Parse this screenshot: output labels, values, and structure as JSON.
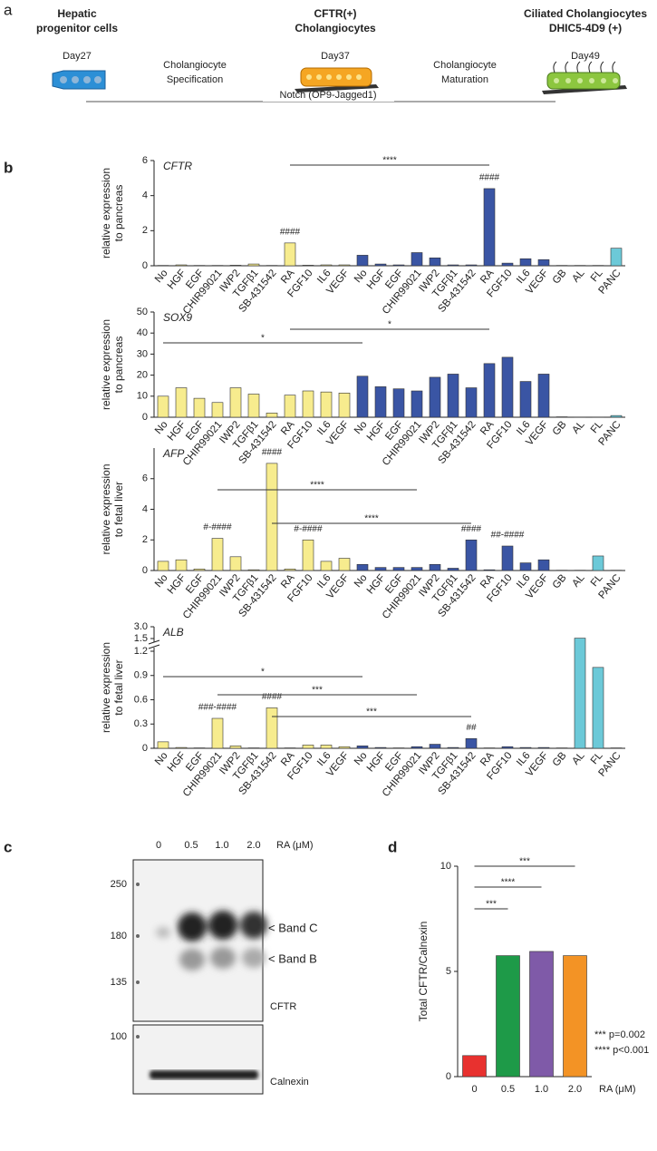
{
  "panel_labels": [
    "a",
    "b",
    "c",
    "d"
  ],
  "panel_a": {
    "stages": [
      {
        "title": [
          "Hepatic",
          "progenitor cells"
        ],
        "day": "Day27"
      },
      {
        "title": [
          "CFTR(+)",
          "Cholangiocytes"
        ],
        "day": "Day37"
      },
      {
        "title": [
          "Ciliated Cholangiocytes",
          "DHIC5-4D9 (+)"
        ],
        "day": "Day49"
      }
    ],
    "steps": [
      [
        "Cholangiocyte",
        "Specification"
      ],
      [
        "Cholangiocyte",
        "Maturation"
      ]
    ],
    "notch": "Notch (OP9-Jagged1)"
  },
  "panel_c": {
    "lanes": [
      "0",
      "0.5",
      "1.0",
      "2.0"
    ],
    "lane_unit": "RA (μM)",
    "markers": [
      "250",
      "180",
      "135",
      "100"
    ],
    "bands": [
      "< Band C",
      "< Band B"
    ],
    "blots": [
      "CFTR",
      "Calnexin"
    ]
  },
  "chart_data": [
    {
      "type": "bar",
      "title": "CFTR",
      "ylabel": [
        "relative expression",
        "to pancreas"
      ],
      "categories": [
        "No",
        "HGF",
        "EGF",
        "CHIR99021",
        "IWP2",
        "TGFβ1",
        "SB-431542",
        "RA",
        "FGF10",
        "IL6",
        "VEGF",
        "No",
        "HGF",
        "EGF",
        "CHIR99021",
        "IWP2",
        "TGFβ1",
        "SB-431542",
        "RA",
        "FGF10",
        "IL6",
        "VEGF",
        "GB",
        "AL",
        "FL",
        "PANC"
      ],
      "values": [
        0.02,
        0.05,
        0.02,
        0.02,
        0.03,
        0.1,
        0.02,
        1.3,
        0.03,
        0.05,
        0.05,
        0.6,
        0.1,
        0.05,
        0.75,
        0.45,
        0.05,
        0.05,
        4.4,
        0.15,
        0.4,
        0.35,
        0.02,
        0.02,
        0.02,
        1.0
      ],
      "colors": [
        "#f7ec8e",
        "#f7ec8e",
        "#f7ec8e",
        "#f7ec8e",
        "#f7ec8e",
        "#f7ec8e",
        "#f7ec8e",
        "#f7ec8e",
        "#f7ec8e",
        "#f7ec8e",
        "#f7ec8e",
        "#3a55a4",
        "#3a55a4",
        "#3a55a4",
        "#3a55a4",
        "#3a55a4",
        "#3a55a4",
        "#3a55a4",
        "#3a55a4",
        "#3a55a4",
        "#3a55a4",
        "#3a55a4",
        "#6cc9d8",
        "#6cc9d8",
        "#6cc9d8",
        "#6cc9d8"
      ],
      "ylim": [
        0,
        6
      ],
      "yticks": [
        0,
        2,
        4,
        6
      ],
      "annotations": [
        "****",
        "####",
        "####"
      ]
    },
    {
      "type": "bar",
      "title": "SOX9",
      "ylabel": [
        "relative expression",
        "to pancreas"
      ],
      "categories": [
        "No",
        "HGF",
        "EGF",
        "CHIR99021",
        "IWP2",
        "TGFβ1",
        "SB-431542",
        "RA",
        "FGF10",
        "IL6",
        "VEGF",
        "No",
        "HGF",
        "EGF",
        "CHIR99021",
        "IWP2",
        "TGFβ1",
        "SB-431542",
        "RA",
        "FGF10",
        "IL6",
        "VEGF",
        "GB",
        "AL",
        "FL",
        "PANC"
      ],
      "values": [
        10,
        14,
        9,
        7,
        14,
        11,
        2,
        10.5,
        12.5,
        12,
        11.5,
        19.5,
        14.5,
        13.5,
        12.5,
        19,
        20.5,
        14,
        25.5,
        28.5,
        17,
        20.5,
        0.2,
        0.1,
        0.1,
        0.8
      ],
      "colors": [
        "#f7ec8e",
        "#f7ec8e",
        "#f7ec8e",
        "#f7ec8e",
        "#f7ec8e",
        "#f7ec8e",
        "#f7ec8e",
        "#f7ec8e",
        "#f7ec8e",
        "#f7ec8e",
        "#f7ec8e",
        "#3a55a4",
        "#3a55a4",
        "#3a55a4",
        "#3a55a4",
        "#3a55a4",
        "#3a55a4",
        "#3a55a4",
        "#3a55a4",
        "#3a55a4",
        "#3a55a4",
        "#3a55a4",
        "#6cc9d8",
        "#6cc9d8",
        "#6cc9d8",
        "#6cc9d8"
      ],
      "ylim": [
        0,
        50
      ],
      "yticks": [
        0,
        10,
        20,
        30,
        40,
        50
      ],
      "annotations": [
        "*",
        "*"
      ]
    },
    {
      "type": "bar",
      "title": "AFP",
      "ylabel": [
        "relative expression",
        "to fetal liver"
      ],
      "categories": [
        "No",
        "HGF",
        "EGF",
        "CHIR99021",
        "IWP2",
        "TGFβ1",
        "SB-431542",
        "RA",
        "FGF10",
        "IL6",
        "VEGF",
        "No",
        "HGF",
        "EGF",
        "CHIR99021",
        "IWP2",
        "TGFβ1",
        "SB-431542",
        "RA",
        "FGF10",
        "IL6",
        "VEGF",
        "GB",
        "AL",
        "FL",
        "PANC"
      ],
      "values": [
        0.6,
        0.7,
        0.1,
        2.1,
        0.9,
        0.05,
        7.0,
        0.1,
        2.0,
        0.6,
        0.8,
        0.4,
        0.2,
        0.2,
        0.2,
        0.4,
        0.15,
        2.0,
        0.05,
        1.6,
        0.5,
        0.7,
        0.02,
        0.02,
        0.95,
        0.02
      ],
      "colors": [
        "#f7ec8e",
        "#f7ec8e",
        "#f7ec8e",
        "#f7ec8e",
        "#f7ec8e",
        "#f7ec8e",
        "#f7ec8e",
        "#f7ec8e",
        "#f7ec8e",
        "#f7ec8e",
        "#f7ec8e",
        "#3a55a4",
        "#3a55a4",
        "#3a55a4",
        "#3a55a4",
        "#3a55a4",
        "#3a55a4",
        "#3a55a4",
        "#3a55a4",
        "#3a55a4",
        "#3a55a4",
        "#3a55a4",
        "#6cc9d8",
        "#6cc9d8",
        "#6cc9d8",
        "#6cc9d8"
      ],
      "ylim": [
        0,
        8
      ],
      "yticks": [
        0,
        2,
        4,
        6
      ],
      "annotations": [
        "****",
        "****",
        "#-####",
        "####",
        "#-####",
        "####",
        "##-####"
      ]
    },
    {
      "type": "bar",
      "title": "ALB",
      "ylabel": [
        "relative expression",
        "to fetal liver"
      ],
      "categories": [
        "No",
        "HGF",
        "EGF",
        "CHIR99021",
        "IWP2",
        "TGFβ1",
        "SB-431542",
        "RA",
        "FGF10",
        "IL6",
        "VEGF",
        "No",
        "HGF",
        "EGF",
        "CHIR99021",
        "IWP2",
        "TGFβ1",
        "SB-431542",
        "RA",
        "FGF10",
        "IL6",
        "VEGF",
        "GB",
        "AL",
        "FL",
        "PANC"
      ],
      "values": [
        0.08,
        0.01,
        0.005,
        0.37,
        0.03,
        0.005,
        0.5,
        0.005,
        0.04,
        0.04,
        0.02,
        0.03,
        0.01,
        0.005,
        0.02,
        0.05,
        0.01,
        0.12,
        0.005,
        0.02,
        0.01,
        0.01,
        0.005,
        1.55,
        1.0,
        0.005
      ],
      "colors": [
        "#f7ec8e",
        "#f7ec8e",
        "#f7ec8e",
        "#f7ec8e",
        "#f7ec8e",
        "#f7ec8e",
        "#f7ec8e",
        "#f7ec8e",
        "#f7ec8e",
        "#f7ec8e",
        "#f7ec8e",
        "#3a55a4",
        "#3a55a4",
        "#3a55a4",
        "#3a55a4",
        "#3a55a4",
        "#3a55a4",
        "#3a55a4",
        "#3a55a4",
        "#3a55a4",
        "#3a55a4",
        "#3a55a4",
        "#6cc9d8",
        "#6cc9d8",
        "#6cc9d8",
        "#6cc9d8"
      ],
      "ylim": [
        0,
        3
      ],
      "axis_break": [
        1.2,
        1.5
      ],
      "yticks": [
        0,
        0.3,
        0.6,
        0.9,
        1.2,
        1.5,
        {
          "value": 3,
          "label": "3.0"
        }
      ],
      "annotations": [
        "*",
        "***",
        "***",
        "###-####",
        "####",
        "##"
      ]
    },
    {
      "type": "bar",
      "ylabel": "Total CFTR/Calnexin",
      "xlabel": "RA (μM)",
      "categories": [
        "0",
        "0.5",
        "1.0",
        "2.0"
      ],
      "values": [
        1,
        5.75,
        5.95,
        5.75
      ],
      "colors": [
        "#e8312f",
        "#1e9a48",
        "#7f5aa8",
        "#f39325"
      ],
      "ylim": [
        0,
        10
      ],
      "yticks": [
        0,
        5,
        10
      ],
      "annotations": [
        "***",
        "****",
        "***"
      ],
      "notes": [
        "*** p=0.002",
        "**** p<0.001"
      ]
    }
  ]
}
